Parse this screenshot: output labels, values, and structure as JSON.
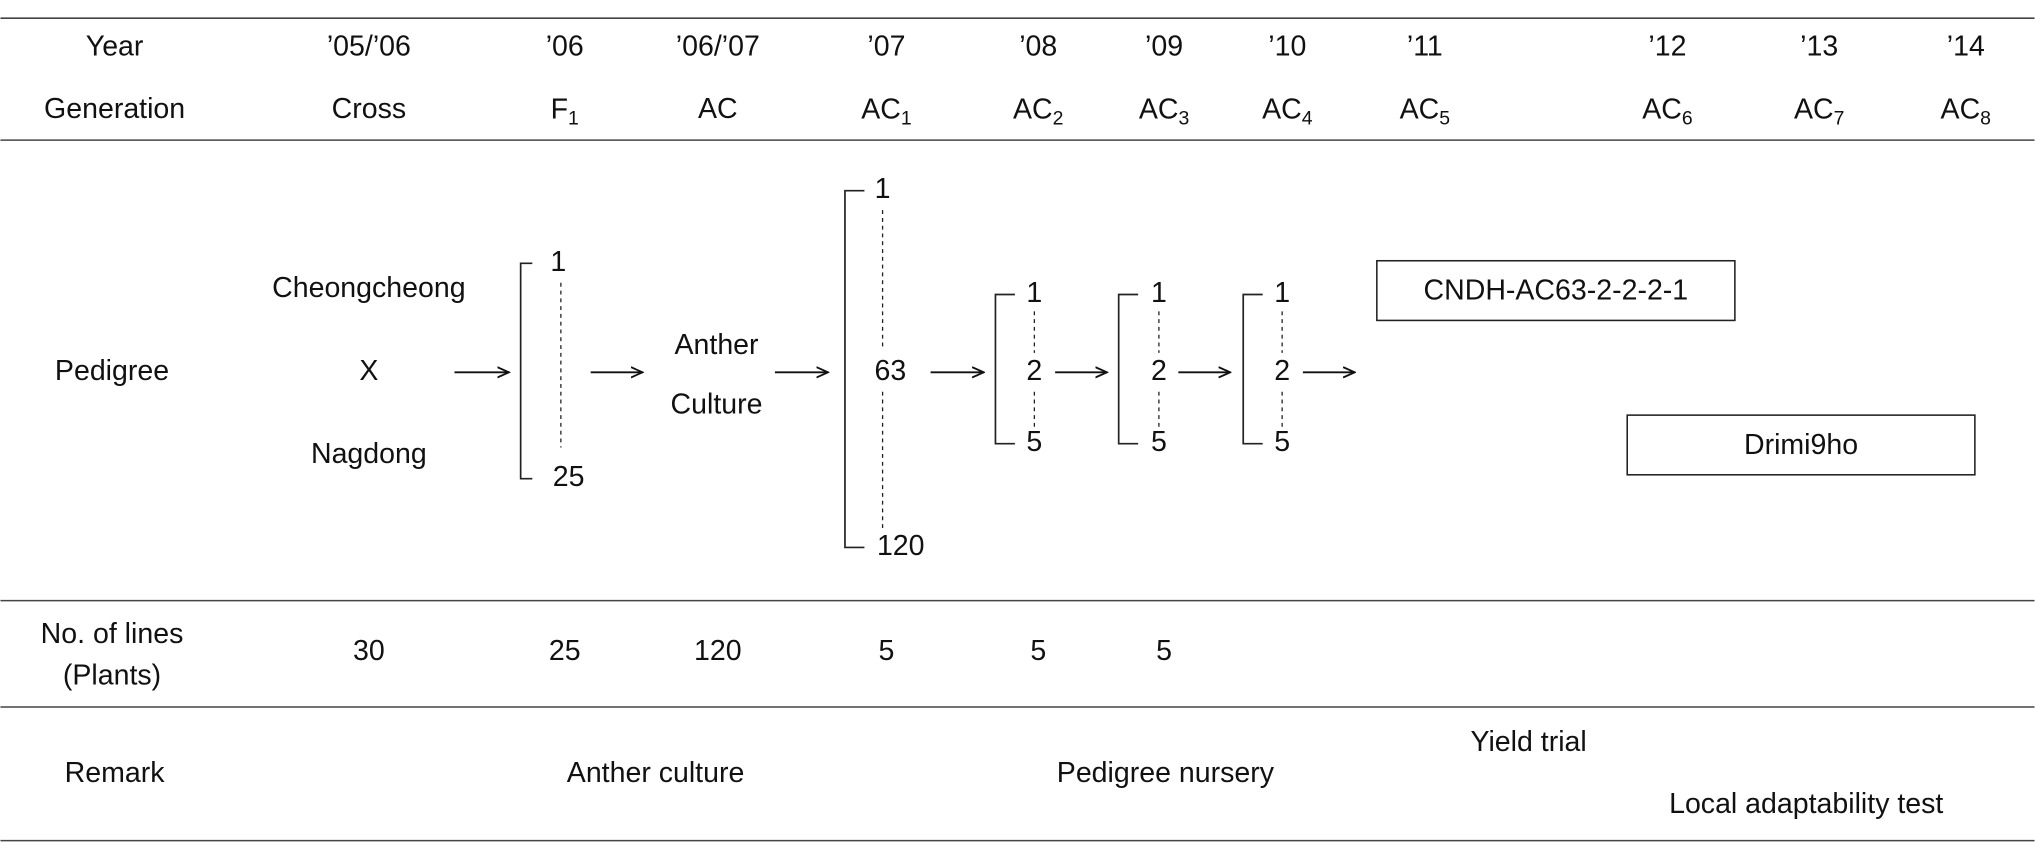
{
  "table": {
    "row_labels": {
      "year": "Year",
      "generation": "Generation",
      "pedigree": "Pedigree",
      "lines": [
        "No. of lines",
        "(Plants)"
      ],
      "remark": "Remark"
    },
    "years": [
      "’05/’06",
      "’06",
      "’06/’07",
      "’07",
      "’08",
      "’09",
      "’10",
      "’11",
      "’12",
      "’13",
      "’14"
    ],
    "generations": [
      {
        "text": "Cross"
      },
      {
        "base": "F",
        "sub": "1"
      },
      {
        "text": "AC"
      },
      {
        "base": "AC",
        "sub": "1"
      },
      {
        "base": "AC",
        "sub": "2"
      },
      {
        "base": "AC",
        "sub": "3"
      },
      {
        "base": "AC",
        "sub": "4"
      },
      {
        "base": "AC",
        "sub": "5"
      },
      {
        "base": "AC",
        "sub": "6"
      },
      {
        "base": "AC",
        "sub": "7"
      },
      {
        "base": "AC",
        "sub": "8"
      }
    ],
    "pedigree": {
      "parents": [
        "Cheongcheong",
        "X",
        "Nagdong"
      ],
      "f1": [
        "1",
        "25"
      ],
      "anther_culture": [
        "Anther",
        "Culture"
      ],
      "ac1": [
        "1",
        "63",
        "120"
      ],
      "ac2": [
        "1",
        "2",
        "5"
      ],
      "ac3": [
        "1",
        "2",
        "5"
      ],
      "ac4": [
        "1",
        "2",
        "5"
      ],
      "selected_line": "CNDH-AC63-2-2-2-1",
      "variety": "Drimi9ho"
    },
    "no_of_lines": [
      30,
      25,
      120,
      5,
      5,
      5
    ],
    "remarks": [
      "Anther culture",
      "Pedigree nursery",
      "Yield trial",
      "Local adaptability test"
    ]
  }
}
